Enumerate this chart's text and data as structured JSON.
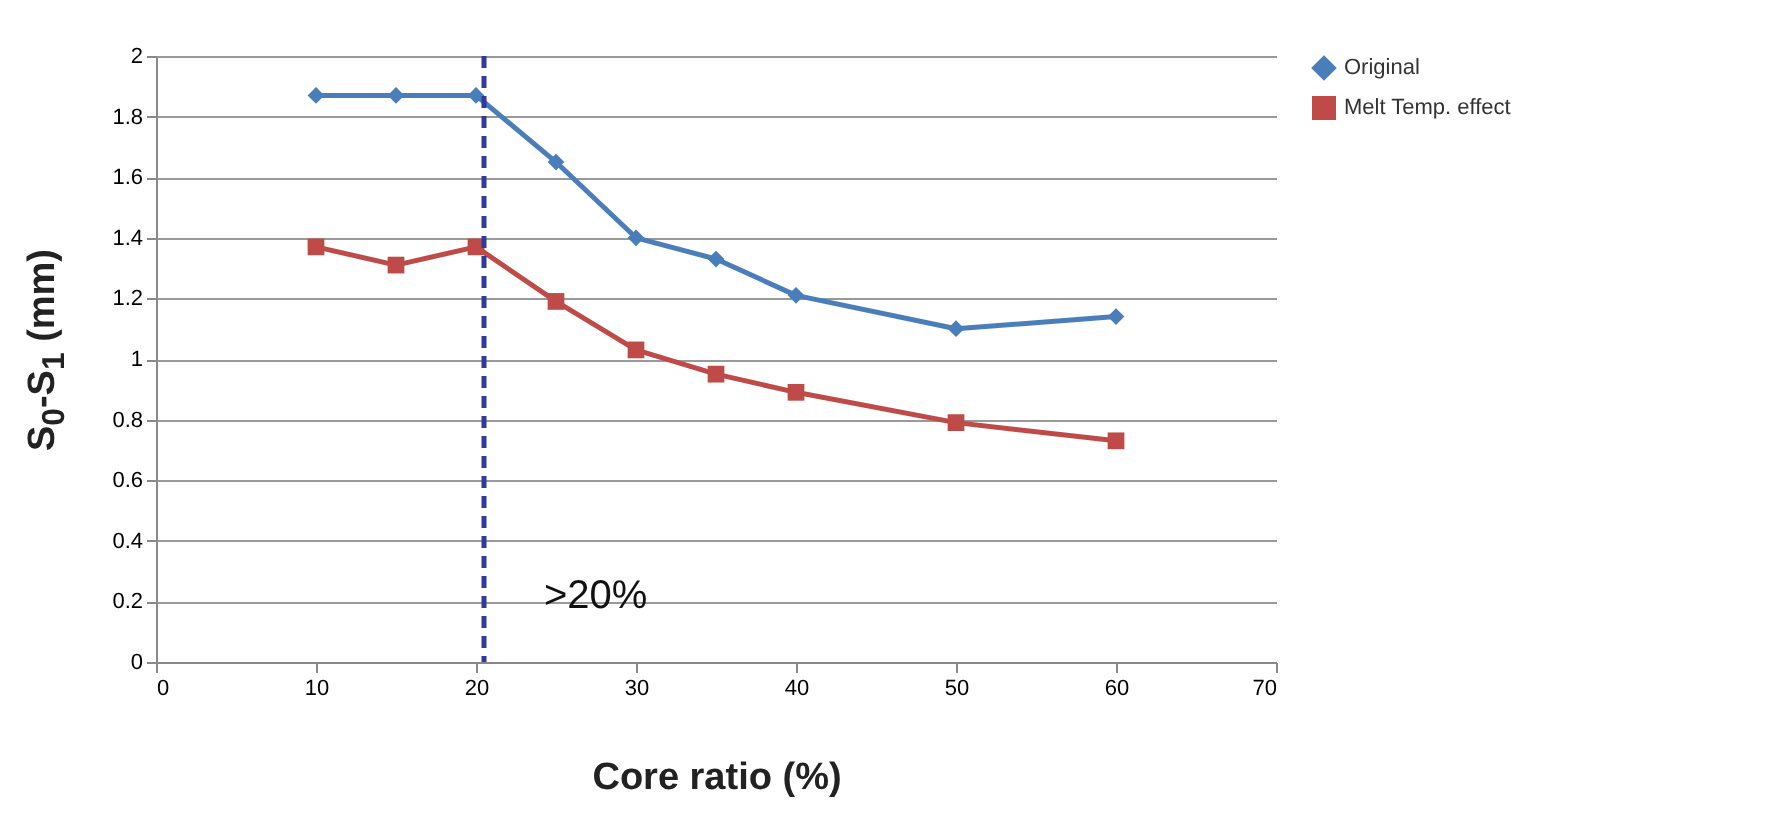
{
  "chart_data": {
    "type": "line",
    "xlabel": "Core ratio (%)",
    "ylabel": "S$_{0}$-S$_{1}$ (mm)",
    "x": [
      10,
      15,
      20,
      25,
      30,
      35,
      40,
      50,
      60
    ],
    "series": [
      {
        "name": "Original",
        "color": "#4a7ebb",
        "marker": "diamond",
        "values": [
          1.87,
          1.87,
          1.87,
          1.65,
          1.4,
          1.33,
          1.21,
          1.1,
          1.14
        ]
      },
      {
        "name": "Melt Temp. effect",
        "color": "#be4b48",
        "marker": "square",
        "values": [
          1.37,
          1.31,
          1.37,
          1.19,
          1.03,
          0.95,
          0.89,
          0.79,
          0.73
        ]
      }
    ],
    "xlim": [
      0,
      70
    ],
    "xticks": [
      0,
      10,
      20,
      30,
      40,
      50,
      60,
      70
    ],
    "ylim": [
      0,
      2
    ],
    "yticks": [
      0,
      0.2,
      0.4,
      0.6,
      0.8,
      1,
      1.2,
      1.4,
      1.6,
      1.8,
      2
    ],
    "ref_lines": [
      {
        "axis": "x",
        "value": 20.5,
        "label": ">20%",
        "color": "#2e3a9e",
        "line_style": "dashed"
      }
    ],
    "grid": "y",
    "legend": "right",
    "line_style": "solid"
  }
}
